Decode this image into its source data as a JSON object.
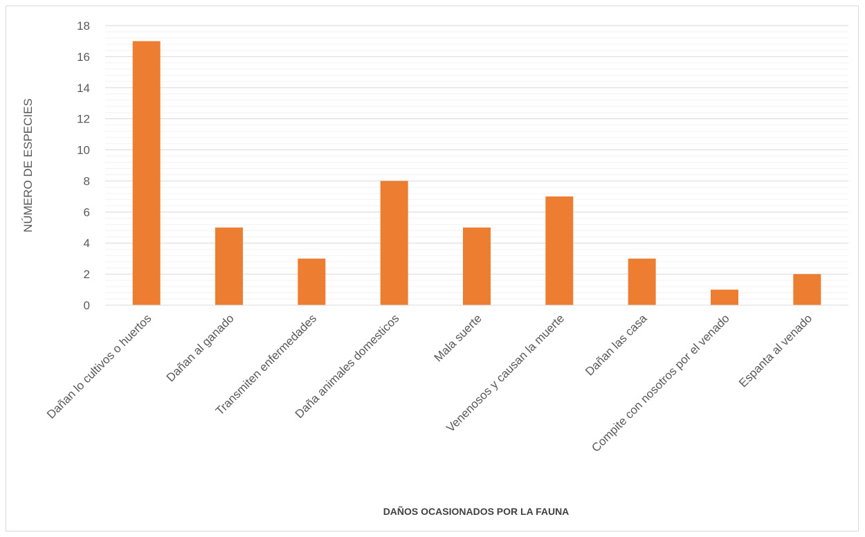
{
  "chart_data": {
    "type": "bar",
    "title": "",
    "xlabel": "DAÑOS OCASIONADOS POR LA FAUNA",
    "ylabel": "NÚMERO DE ESPECIES",
    "categories": [
      "Dañan lo cultivos o huertos",
      "Dañan al ganado",
      "Transmiten enfermedades",
      "Daña animales domesticos",
      "Mala suerte",
      "Venenosos y causan la muerte",
      "Dañan las casa",
      "Compite con nosotros por el venado",
      "Espanta al venado"
    ],
    "values": [
      17,
      5,
      3,
      8,
      5,
      7,
      3,
      1,
      2
    ],
    "ylim": [
      0,
      18
    ],
    "yticks": [
      0,
      2,
      4,
      6,
      8,
      10,
      12,
      14,
      16,
      18
    ],
    "grid": true,
    "legend": "none",
    "bar_color": "#ED7D31"
  }
}
